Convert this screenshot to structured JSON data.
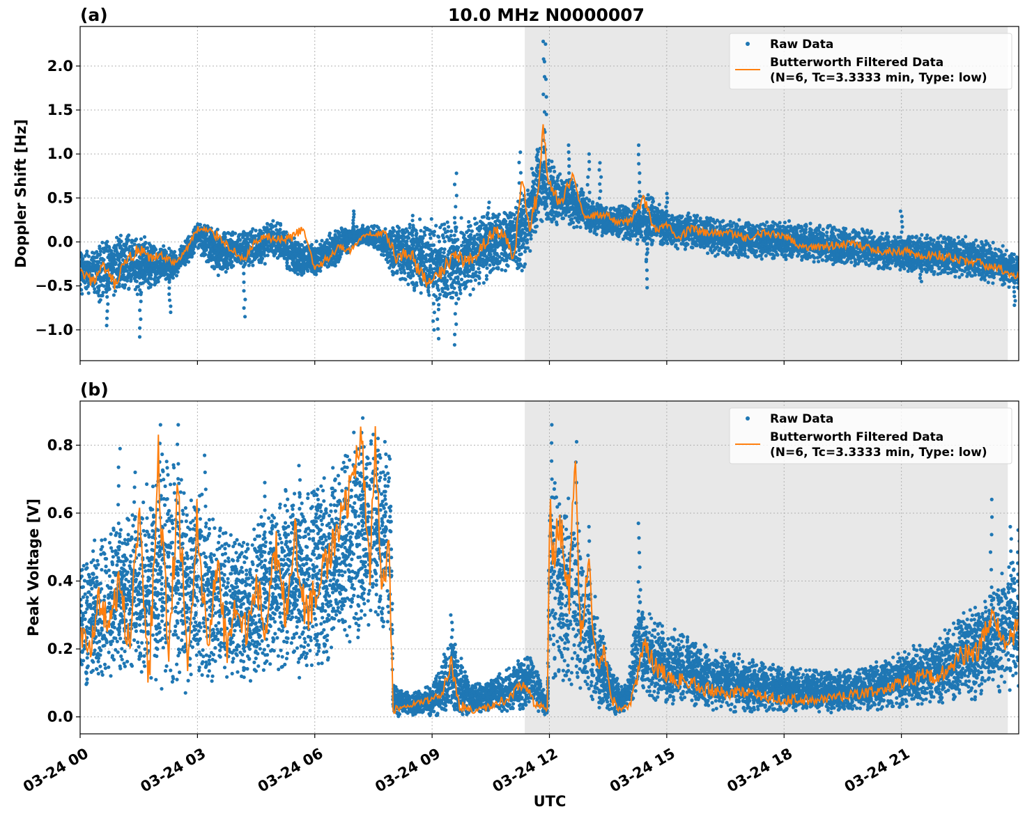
{
  "figure": {
    "title": "10.0 MHz N0000007",
    "xlabel": "UTC"
  },
  "chart_data": [
    {
      "type": "scatter",
      "panel_label": "(a)",
      "title": "10.0 MHz N0000007",
      "ylabel": "Doppler Shift [Hz]",
      "xlabel": "",
      "x_unit": "hours UTC on 03-24",
      "xlim": [
        0,
        24
      ],
      "ylim": [
        -1.35,
        2.45
      ],
      "y_ticks": [
        -1.0,
        -0.5,
        0.0,
        0.5,
        1.0,
        1.5,
        2.0
      ],
      "y_tick_labels": [
        "−1.0",
        "−0.5",
        "0.0",
        "0.5",
        "1.0",
        "1.5",
        "2.0"
      ],
      "x_ticks": [
        0,
        3,
        6,
        9,
        12,
        15,
        18,
        21
      ],
      "grid": true,
      "legend_position": "top-right",
      "shaded_interval": [
        11.37,
        23.72
      ],
      "shade_color": "#e8e8e8",
      "legend": [
        {
          "label": "Raw Data",
          "color": "#1f77b4",
          "marker": "dot"
        },
        {
          "label": "Butterworth Filtered Data",
          "label2": "(N=6, Tc=3.3333 min, Type: low)",
          "color": "#ff7f0e",
          "marker": "line"
        }
      ],
      "series": [
        {
          "name": "Raw Data",
          "style": "band",
          "color": "#1f77b4",
          "x": [
            0,
            0.5,
            1.0,
            1.5,
            2.0,
            2.5,
            3.0,
            3.5,
            4.0,
            4.5,
            5.0,
            5.5,
            6.0,
            6.5,
            7.0,
            7.5,
            8.0,
            8.5,
            9.0,
            9.5,
            10.0,
            10.5,
            11.0,
            11.3,
            11.5,
            11.8,
            12.0,
            12.3,
            12.6,
            13.0,
            13.5,
            14.0,
            14.5,
            15.0,
            15.5,
            16.0,
            17.0,
            18.0,
            19.0,
            20.0,
            21.0,
            22.0,
            23.0,
            24.0
          ],
          "upper": [
            -0.1,
            0.0,
            0.15,
            0.1,
            0.0,
            -0.1,
            0.25,
            0.15,
            0.15,
            0.2,
            0.3,
            0.05,
            0.0,
            0.15,
            0.2,
            0.2,
            0.2,
            0.25,
            0.3,
            0.3,
            0.3,
            0.35,
            0.4,
            0.6,
            0.85,
            1.2,
            1.1,
            0.8,
            0.75,
            0.5,
            0.4,
            0.45,
            0.6,
            0.35,
            0.35,
            0.3,
            0.25,
            0.25,
            0.2,
            0.15,
            0.1,
            0.1,
            0.05,
            -0.1
          ],
          "lower": [
            -0.6,
            -0.7,
            -0.6,
            -0.65,
            -0.5,
            -0.4,
            -0.1,
            -0.4,
            -0.3,
            -0.3,
            -0.2,
            -0.4,
            -0.4,
            -0.3,
            -0.05,
            -0.05,
            -0.4,
            -0.55,
            -0.7,
            -0.8,
            -0.6,
            -0.4,
            -0.35,
            -0.4,
            -0.2,
            0.2,
            0.1,
            0.2,
            0.15,
            0.1,
            0.05,
            0.0,
            -0.05,
            -0.05,
            -0.1,
            -0.15,
            -0.2,
            -0.2,
            -0.25,
            -0.3,
            -0.35,
            -0.4,
            -0.45,
            -0.55
          ],
          "spikes": [
            [
              0.7,
              -0.95
            ],
            [
              1.55,
              -1.08
            ],
            [
              2.3,
              -0.8
            ],
            [
              4.2,
              -0.85
            ],
            [
              7.0,
              0.35
            ],
            [
              8.5,
              0.3
            ],
            [
              9.05,
              -1.0
            ],
            [
              9.15,
              -1.1
            ],
            [
              9.6,
              -1.17
            ],
            [
              9.6,
              0.78
            ],
            [
              10.45,
              0.45
            ],
            [
              11.25,
              1.02
            ],
            [
              11.7,
              1.05
            ],
            [
              11.85,
              2.28
            ],
            [
              11.9,
              2.25
            ],
            [
              12.5,
              1.1
            ],
            [
              13.0,
              1.0
            ],
            [
              13.3,
              0.9
            ],
            [
              14.3,
              1.1
            ],
            [
              14.5,
              -0.52
            ],
            [
              14.5,
              -0.2
            ],
            [
              15.0,
              0.55
            ],
            [
              21.0,
              0.35
            ],
            [
              21.5,
              -0.45
            ],
            [
              23.9,
              -0.72
            ]
          ]
        },
        {
          "name": "Butterworth Filtered Data",
          "style": "line",
          "color": "#ff7f0e",
          "x": [
            0,
            0.3,
            0.6,
            0.9,
            1.2,
            1.5,
            1.8,
            2.1,
            2.4,
            2.7,
            3.0,
            3.3,
            3.6,
            3.9,
            4.2,
            4.5,
            4.8,
            5.1,
            5.4,
            5.7,
            6.0,
            6.3,
            6.6,
            6.9,
            7.2,
            7.5,
            7.8,
            8.1,
            8.4,
            8.7,
            9.0,
            9.3,
            9.6,
            9.9,
            10.2,
            10.5,
            10.8,
            11.1,
            11.3,
            11.5,
            11.7,
            11.85,
            12.0,
            12.3,
            12.6,
            12.9,
            13.2,
            13.5,
            13.8,
            14.1,
            14.4,
            14.7,
            15.0,
            15.3,
            15.6,
            16.0,
            16.5,
            17.0,
            17.5,
            18.0,
            18.5,
            19.0,
            19.5,
            20.0,
            20.5,
            21.0,
            21.5,
            22.0,
            22.5,
            23.0,
            23.5,
            24.0
          ],
          "y": [
            -0.35,
            -0.45,
            -0.3,
            -0.5,
            -0.2,
            -0.1,
            -0.2,
            -0.15,
            -0.25,
            -0.1,
            0.15,
            0.12,
            0.05,
            -0.1,
            -0.2,
            0.0,
            0.05,
            0.02,
            0.05,
            0.15,
            -0.3,
            -0.2,
            -0.05,
            -0.1,
            0.05,
            0.1,
            0.1,
            -0.2,
            -0.1,
            -0.35,
            -0.5,
            -0.3,
            -0.1,
            -0.25,
            -0.1,
            0.1,
            0.1,
            -0.2,
            0.7,
            0.1,
            0.6,
            1.3,
            0.6,
            0.45,
            0.75,
            0.3,
            0.3,
            0.3,
            0.2,
            0.25,
            0.5,
            0.15,
            0.2,
            0.05,
            0.15,
            0.1,
            0.1,
            0.05,
            0.1,
            0.05,
            -0.05,
            -0.05,
            -0.02,
            -0.05,
            -0.1,
            -0.1,
            -0.15,
            -0.15,
            -0.2,
            -0.25,
            -0.3,
            -0.4
          ]
        }
      ]
    },
    {
      "type": "scatter",
      "panel_label": "(b)",
      "title": "",
      "ylabel": "Peak Voltage [V]",
      "xlabel": "UTC",
      "x_unit": "hours UTC on 03-24",
      "xlim": [
        0,
        24
      ],
      "ylim": [
        -0.05,
        0.93
      ],
      "y_ticks": [
        0.0,
        0.2,
        0.4,
        0.6,
        0.8
      ],
      "y_tick_labels": [
        "0.0",
        "0.2",
        "0.4",
        "0.6",
        "0.8"
      ],
      "x_ticks": [
        0,
        3,
        6,
        9,
        12,
        15,
        18,
        21
      ],
      "x_tick_labels": [
        "03-24 00",
        "03-24 03",
        "03-24 06",
        "03-24 09",
        "03-24 12",
        "03-24 15",
        "03-24 18",
        "03-24 21"
      ],
      "grid": true,
      "legend_position": "top-right",
      "shaded_interval": [
        11.37,
        23.72
      ],
      "shade_color": "#e8e8e8",
      "legend": [
        {
          "label": "Raw Data",
          "color": "#1f77b4",
          "marker": "dot"
        },
        {
          "label": "Butterworth Filtered Data",
          "label2": "(N=6, Tc=3.3333 min, Type: low)",
          "color": "#ff7f0e",
          "marker": "line"
        }
      ],
      "series": [
        {
          "name": "Raw Data",
          "style": "band",
          "color": "#1f77b4",
          "x": [
            0,
            0.5,
            1.0,
            1.5,
            2.0,
            2.5,
            3.0,
            3.5,
            4.0,
            4.5,
            5.0,
            5.5,
            6.0,
            6.5,
            7.0,
            7.5,
            7.95,
            8.0,
            8.5,
            9.0,
            9.5,
            10.0,
            10.5,
            11.0,
            11.5,
            11.95,
            12.0,
            12.3,
            12.6,
            12.9,
            13.2,
            13.5,
            13.8,
            14.0,
            14.3,
            14.6,
            15.0,
            16.0,
            17.0,
            18.0,
            19.0,
            20.0,
            21.0,
            22.0,
            23.0,
            24.0
          ],
          "upper": [
            0.45,
            0.55,
            0.6,
            0.65,
            0.8,
            0.75,
            0.7,
            0.6,
            0.55,
            0.6,
            0.65,
            0.7,
            0.7,
            0.75,
            0.85,
            0.85,
            0.8,
            0.1,
            0.07,
            0.1,
            0.25,
            0.1,
            0.12,
            0.15,
            0.2,
            0.05,
            0.8,
            0.65,
            0.7,
            0.45,
            0.35,
            0.2,
            0.1,
            0.1,
            0.4,
            0.3,
            0.28,
            0.22,
            0.18,
            0.15,
            0.14,
            0.15,
            0.2,
            0.25,
            0.35,
            0.5
          ],
          "lower": [
            0.08,
            0.07,
            0.1,
            0.1,
            0.05,
            0.05,
            0.08,
            0.08,
            0.1,
            0.1,
            0.12,
            0.1,
            0.12,
            0.15,
            0.2,
            0.25,
            0.2,
            0.0,
            0.0,
            0.0,
            0.0,
            0.0,
            0.01,
            0.01,
            0.02,
            0.0,
            0.1,
            0.05,
            0.05,
            0.03,
            0.02,
            0.0,
            0.0,
            0.03,
            0.05,
            0.03,
            0.02,
            0.02,
            0.01,
            0.01,
            0.01,
            0.01,
            0.02,
            0.03,
            0.05,
            0.08
          ],
          "spikes": [
            [
              1.0,
              0.79
            ],
            [
              1.4,
              0.72
            ],
            [
              2.05,
              0.86
            ],
            [
              2.5,
              0.86
            ],
            [
              3.2,
              0.77
            ],
            [
              4.7,
              0.69
            ],
            [
              5.6,
              0.74
            ],
            [
              7.2,
              0.88
            ],
            [
              7.6,
              0.82
            ],
            [
              7.8,
              0.81
            ],
            [
              9.5,
              0.3
            ],
            [
              12.05,
              0.86
            ],
            [
              12.7,
              0.81
            ],
            [
              13.0,
              0.56
            ],
            [
              14.3,
              0.57
            ],
            [
              23.3,
              0.64
            ],
            [
              23.8,
              0.56
            ],
            [
              24.0,
              0.55
            ]
          ]
        },
        {
          "name": "Butterworth Filtered Data",
          "style": "line",
          "color": "#ff7f0e",
          "x": [
            0,
            0.25,
            0.5,
            0.75,
            1.0,
            1.25,
            1.5,
            1.75,
            2.0,
            2.25,
            2.5,
            2.75,
            3.0,
            3.25,
            3.5,
            3.75,
            4.0,
            4.25,
            4.5,
            4.75,
            5.0,
            5.25,
            5.5,
            5.75,
            6.0,
            6.25,
            6.5,
            6.75,
            7.0,
            7.2,
            7.4,
            7.55,
            7.7,
            7.9,
            8.0,
            8.3,
            8.6,
            9.0,
            9.3,
            9.5,
            9.7,
            10.0,
            10.5,
            11.0,
            11.3,
            11.6,
            11.95,
            12.0,
            12.1,
            12.3,
            12.5,
            12.65,
            12.8,
            13.0,
            13.2,
            13.4,
            13.6,
            13.8,
            14.0,
            14.2,
            14.4,
            14.7,
            15.0,
            15.5,
            16.0,
            16.5,
            17.0,
            17.5,
            18.0,
            18.5,
            19.0,
            19.5,
            20.0,
            20.5,
            21.0,
            21.5,
            22.0,
            22.5,
            23.0,
            23.3,
            23.6,
            24.0
          ],
          "y": [
            0.25,
            0.2,
            0.35,
            0.25,
            0.4,
            0.2,
            0.6,
            0.1,
            0.75,
            0.2,
            0.65,
            0.15,
            0.6,
            0.2,
            0.45,
            0.2,
            0.35,
            0.25,
            0.4,
            0.25,
            0.5,
            0.3,
            0.55,
            0.3,
            0.35,
            0.45,
            0.5,
            0.6,
            0.7,
            0.85,
            0.4,
            0.85,
            0.35,
            0.5,
            0.02,
            0.03,
            0.04,
            0.05,
            0.08,
            0.16,
            0.03,
            0.02,
            0.03,
            0.06,
            0.1,
            0.04,
            0.02,
            0.6,
            0.5,
            0.55,
            0.35,
            0.75,
            0.25,
            0.45,
            0.15,
            0.2,
            0.05,
            0.02,
            0.03,
            0.08,
            0.22,
            0.15,
            0.12,
            0.1,
            0.08,
            0.07,
            0.07,
            0.06,
            0.05,
            0.05,
            0.05,
            0.06,
            0.07,
            0.08,
            0.1,
            0.12,
            0.12,
            0.18,
            0.2,
            0.3,
            0.22,
            0.25
          ]
        }
      ]
    }
  ]
}
